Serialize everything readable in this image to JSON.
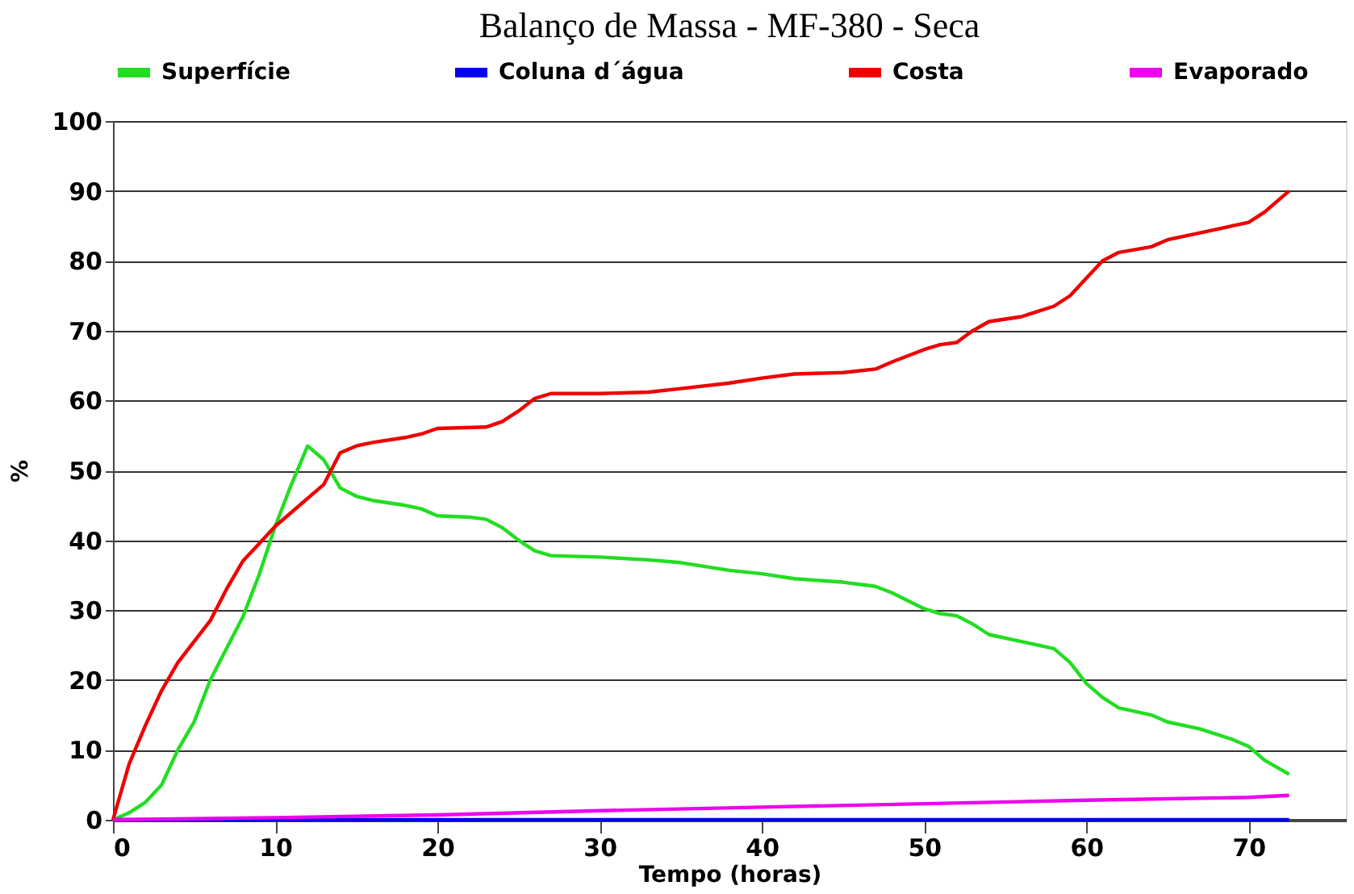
{
  "chart_data": {
    "type": "line",
    "title": "Balanço de Massa - MF-380 - Seca",
    "xlabel": "Tempo (horas)",
    "ylabel": "%",
    "xlim": [
      0,
      76
    ],
    "xticks": [
      0,
      10,
      20,
      30,
      40,
      50,
      60,
      70
    ],
    "ylim": [
      0,
      100
    ],
    "yticks": [
      0,
      10,
      20,
      30,
      40,
      50,
      60,
      70,
      80,
      90,
      100
    ],
    "grid": "y",
    "legend": "top",
    "marker": "none",
    "line_style": "solid",
    "series": [
      {
        "name": "Superfície",
        "color": "#22dd22",
        "x": [
          0,
          1,
          2,
          3,
          4,
          5,
          6,
          7,
          8,
          9,
          10,
          11,
          12,
          13,
          14,
          15,
          16,
          18,
          19,
          20,
          22,
          23,
          24,
          25,
          26,
          27,
          30,
          33,
          35,
          38,
          40,
          42,
          45,
          47,
          48,
          50,
          51,
          52,
          53,
          54,
          56,
          58,
          59,
          60,
          61,
          62,
          64,
          65,
          67,
          69,
          70,
          71,
          72.5
        ],
        "values": [
          0,
          1,
          2.5,
          5,
          10,
          14,
          20,
          24.5,
          29,
          35,
          42,
          48,
          53.5,
          51.5,
          47.5,
          46.3,
          45.7,
          45,
          44.5,
          43.5,
          43.3,
          43,
          41.8,
          40,
          38.5,
          37.8,
          37.6,
          37.2,
          36.8,
          35.7,
          35.2,
          34.5,
          34,
          33.4,
          32.5,
          30.2,
          29.5,
          29.2,
          28,
          26.5,
          25.5,
          24.5,
          22.5,
          19.5,
          17.5,
          16,
          15,
          14,
          13,
          11.5,
          10.5,
          8.5,
          6.5
        ]
      },
      {
        "name": "Coluna d´água",
        "color": "#0000ee",
        "x": [
          0,
          72.5
        ],
        "values": [
          0,
          0
        ]
      },
      {
        "name": "Costa",
        "color": "#ee0000",
        "x": [
          0,
          1,
          2,
          3,
          4,
          5,
          6,
          7,
          8,
          9,
          10,
          11,
          12,
          13,
          14,
          15,
          16,
          18,
          19,
          20,
          23,
          24,
          25,
          26,
          27,
          30,
          33,
          35,
          38,
          40,
          42,
          45,
          47,
          48,
          50,
          51,
          52,
          53,
          54,
          56,
          58,
          59,
          60,
          61,
          62,
          64,
          65,
          67,
          69,
          70,
          71,
          72.5
        ],
        "values": [
          0,
          8,
          13.5,
          18.5,
          22.5,
          25.5,
          28.5,
          33,
          37,
          39.5,
          42,
          44,
          46,
          48,
          52.5,
          53.5,
          54,
          54.7,
          55.2,
          56,
          56.2,
          57,
          58.5,
          60.3,
          61,
          61,
          61.2,
          61.7,
          62.5,
          63.2,
          63.8,
          64,
          64.5,
          65.5,
          67.3,
          68,
          68.3,
          70,
          71.3,
          72,
          73.5,
          75,
          77.5,
          80,
          81.2,
          82,
          83,
          84,
          85,
          85.5,
          87,
          90
        ]
      },
      {
        "name": "Evaporado",
        "color": "#ee00ee",
        "x": [
          0,
          10,
          20,
          30,
          40,
          50,
          60,
          70,
          72.5
        ],
        "values": [
          0,
          0.3,
          0.7,
          1.3,
          1.8,
          2.3,
          2.8,
          3.2,
          3.5
        ]
      }
    ]
  }
}
